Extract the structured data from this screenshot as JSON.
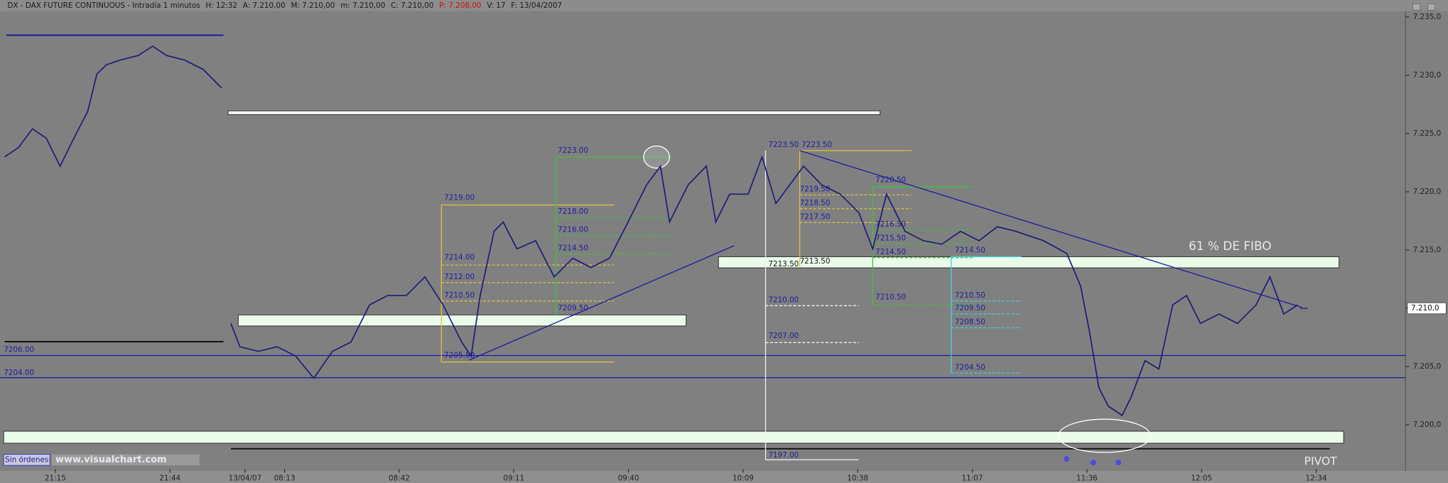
{
  "chart_data": {
    "type": "line",
    "header": [
      {
        "text": "DX - DAX FUTURE CONTINUOUS - Intradía 1 minutos",
        "color": "#1a1a1a"
      },
      {
        "text": "H: 12:32",
        "color": "#1a1a1a"
      },
      {
        "text": "A: 7.210,00",
        "color": "#1a1a1a"
      },
      {
        "text": "M: 7.210,00",
        "color": "#1a1a1a"
      },
      {
        "text": "m: 7.210,00",
        "color": "#1a1a1a"
      },
      {
        "text": "C: 7.210,00",
        "color": "#1a1a1a"
      },
      {
        "text": "P: 7.208,00",
        "color": "#d01010"
      },
      {
        "text": "V: 17",
        "color": "#1a1a1a"
      },
      {
        "text": "F: 13/04/2007",
        "color": "#1a1a1a"
      }
    ],
    "x": [
      1.2,
      4.7,
      8.2,
      11.7,
      15.2,
      18.7,
      22.2,
      24.5,
      26.9,
      30.4,
      35,
      38.6,
      42.1,
      46.7,
      51.4,
      56.1,
      57,
      58.4,
      60.7,
      65.4,
      70.1,
      74.8,
      79.4,
      84.1,
      88.8,
      93.5,
      98.1,
      102.8,
      107.5,
      112.1,
      116.8,
      119.2,
      121.5,
      125,
      127.3,
      130.8,
      135.5,
      140.2,
      144.9,
      149.5,
      154.2,
      158.9,
      163.6,
      167.1,
      169.4,
      174.1,
      178.7,
      181.1,
      184.6,
      189.3,
      192.8,
      196.3,
      199.8,
      203.3,
      207.9,
      212.6,
      217.3,
      220.8,
      224.3,
      229,
      233.6,
      238.3,
      243,
      247.7,
      252.3,
      257,
      264,
      269.9,
      273.4,
      275.7,
      278,
      280.4,
      283.9,
      286.2,
      289.7,
      293.2,
      296.7,
      300.2,
      303.7,
      308.4,
      313.1,
      317.8,
      321.3,
      324.8,
      328.3
    ],
    "series": [
      {
        "name": "DX",
        "color": "#1c1c78",
        "values": [
          7223.0,
          7223.8,
          7225.4,
          7224.6,
          7222.2,
          7224.6,
          7226.9,
          7230.1,
          7230.9,
          7231.3,
          7231.7,
          7232.5,
          7231.7,
          7231.3,
          7230.5,
          7228.9,
          null,
          7208.7,
          7206.7,
          7206.3,
          7206.7,
          7205.9,
          7204.0,
          7206.3,
          7207.1,
          7210.3,
          7211.1,
          7211.1,
          7212.7,
          7210.3,
          7207.1,
          7205.9,
          7211.1,
          7216.6,
          7217.4,
          7215.1,
          7215.8,
          7212.7,
          7214.3,
          7213.5,
          7214.3,
          7217.4,
          7220.6,
          7222.2,
          7217.4,
          7220.6,
          7222.2,
          7217.4,
          7219.8,
          7219.8,
          7223.0,
          7219.0,
          7220.6,
          7222.2,
          7220.6,
          7219.8,
          7218.2,
          7215.1,
          7219.8,
          7216.6,
          7215.8,
          7215.5,
          7216.6,
          7215.8,
          7217.0,
          7216.6,
          7215.8,
          7214.7,
          7211.9,
          7207.9,
          7203.2,
          7201.6,
          7200.8,
          7202.4,
          7205.5,
          7204.8,
          7210.3,
          7211.1,
          7208.7,
          7209.5,
          7208.7,
          7210.3,
          7212.7,
          7209.5,
          7210.3
        ]
      }
    ],
    "xlim": [
      0,
      355.6
    ],
    "xticks": [
      {
        "value": 14,
        "label": "21:15"
      },
      {
        "value": 43,
        "label": "21:44"
      },
      {
        "value": 62,
        "label": "13/04/07"
      },
      {
        "value": 72,
        "label": "08:13"
      },
      {
        "value": 101,
        "label": "08:42"
      },
      {
        "value": 130,
        "label": "09:11"
      },
      {
        "value": 159,
        "label": "09:40"
      },
      {
        "value": 188,
        "label": "10:09"
      },
      {
        "value": 217,
        "label": "10:38"
      },
      {
        "value": 246,
        "label": "11:07"
      },
      {
        "value": 275,
        "label": "11:36"
      },
      {
        "value": 304,
        "label": "12:05"
      },
      {
        "value": 333,
        "label": "12:34"
      }
    ],
    "ylim": [
      7196.2,
      7235.66
    ],
    "yticks": [
      {
        "value": 7200,
        "label": "7.200,0"
      },
      {
        "value": 7205,
        "label": "7.205,0"
      },
      {
        "value": 7210,
        "label": "7.210,0"
      },
      {
        "value": 7215,
        "label": "7.215,0"
      },
      {
        "value": 7220,
        "label": "7.220,0"
      },
      {
        "value": 7225,
        "label": "7.225,0"
      },
      {
        "value": 7230,
        "label": "7.230,0"
      },
      {
        "value": 7235,
        "label": "7.235,0"
      }
    ],
    "last_price": {
      "value": 7210,
      "label": "7.210,0"
    },
    "annotations": [
      "7206.00",
      "7204.00",
      "7219.00",
      "7214.00",
      "7212.00",
      "7210.50",
      "7205.50",
      "7223.00",
      "7218.00",
      "7216.00",
      "7214.50",
      "7209.50",
      "7223.50",
      "7223.50",
      "7219.50",
      "7218.50",
      "7217.50",
      "7213.50",
      "7213.50",
      "7210.00",
      "7207.00",
      "7197.00",
      "7220.50",
      "7216.50",
      "7215.50",
      "7214.50",
      "7210.50",
      "7214.50",
      "7210.50",
      "7209.50",
      "7208.50",
      "7204.50"
    ],
    "fibo_label": "61 % DE FIBO",
    "pivot_label": "PIVOT",
    "orders_label": "Sin órdenes",
    "website": "www.visualchart.com"
  }
}
